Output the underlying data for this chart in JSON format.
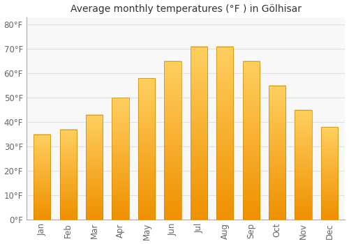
{
  "title": "Average monthly temperatures (°F ) in Gölhisar",
  "months": [
    "Jan",
    "Feb",
    "Mar",
    "Apr",
    "May",
    "Jun",
    "Jul",
    "Aug",
    "Sep",
    "Oct",
    "Nov",
    "Dec"
  ],
  "values": [
    35,
    37,
    43,
    50,
    58,
    65,
    71,
    71,
    65,
    55,
    45,
    38
  ],
  "bar_color": "#FFA520",
  "bar_gradient_top": "#FFD060",
  "bar_gradient_bottom": "#F09000",
  "background_color": "#FFFFFF",
  "plot_bg_color": "#F8F8F8",
  "grid_color": "#E0E0E0",
  "yticks": [
    0,
    10,
    20,
    30,
    40,
    50,
    60,
    70,
    80
  ],
  "ylim": [
    0,
    83
  ],
  "title_fontsize": 10,
  "tick_fontsize": 8.5,
  "bar_width": 0.65
}
